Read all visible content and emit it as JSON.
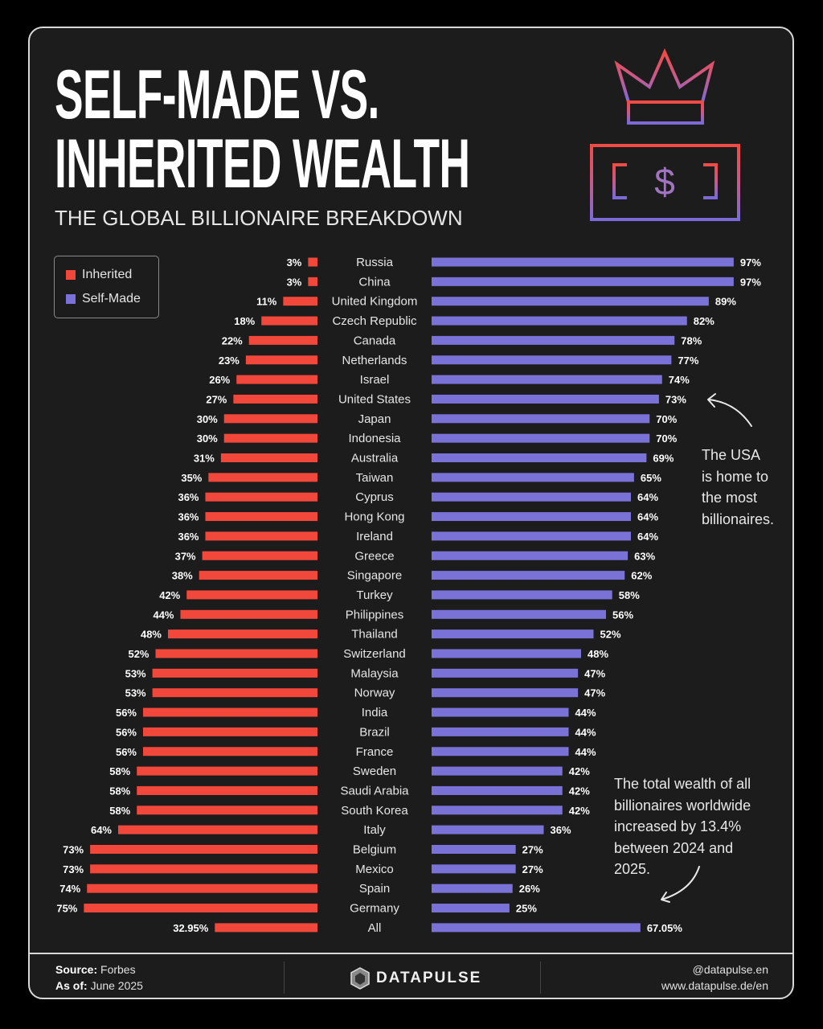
{
  "header": {
    "title_line1": "SELF-MADE VS.",
    "title_line2": "INHERITED WEALTH",
    "subtitle": "THE GLOBAL BILLIONAIRE BREAKDOWN",
    "icons": [
      "crown-icon",
      "dollar-bill-icon"
    ]
  },
  "colors": {
    "inherited": "#f2483c",
    "self_made": "#7a72d6",
    "background": "#1c1c1c"
  },
  "annotations": {
    "usa_note": [
      "The USA",
      "is home to",
      "the most",
      "billionaires."
    ],
    "wealth_note": [
      "The total wealth of all",
      "billionaires worldwide",
      "increased by 13.4%",
      "between 2024 and",
      "2025."
    ]
  },
  "footer": {
    "source_label": "Source:",
    "source_value": "Forbes",
    "asof_label": "As of:",
    "asof_value": "June 2025",
    "brand": "DATAPULSE",
    "handle": "@datapulse.en",
    "website": "www.datapulse.de/en"
  },
  "chart_data": {
    "type": "bar",
    "orientation": "horizontal-diverging",
    "legend": {
      "position": "top-left",
      "entries": [
        "Inherited",
        "Self-Made"
      ]
    },
    "grid": false,
    "xlim": [
      0,
      100
    ],
    "categories": [
      "Russia",
      "China",
      "United Kingdom",
      "Czech Republic",
      "Canada",
      "Netherlands",
      "Israel",
      "United States",
      "Japan",
      "Indonesia",
      "Australia",
      "Taiwan",
      "Cyprus",
      "Hong Kong",
      "Ireland",
      "Greece",
      "Singapore",
      "Turkey",
      "Philippines",
      "Thailand",
      "Switzerland",
      "Malaysia",
      "Norway",
      "India",
      "Brazil",
      "France",
      "Sweden",
      "Saudi Arabia",
      "South Korea",
      "Italy",
      "Belgium",
      "Mexico",
      "Spain",
      "Germany",
      "All"
    ],
    "series": [
      {
        "name": "Inherited",
        "values": [
          3,
          3,
          11,
          18,
          22,
          23,
          26,
          27,
          30,
          30,
          31,
          35,
          36,
          36,
          36,
          37,
          38,
          42,
          44,
          48,
          52,
          53,
          53,
          56,
          56,
          56,
          58,
          58,
          58,
          64,
          73,
          73,
          74,
          75,
          32.95
        ],
        "labels": [
          "3%",
          "3%",
          "11%",
          "18%",
          "22%",
          "23%",
          "26%",
          "27%",
          "30%",
          "30%",
          "31%",
          "35%",
          "36%",
          "36%",
          "36%",
          "37%",
          "38%",
          "42%",
          "44%",
          "48%",
          "52%",
          "53%",
          "53%",
          "56%",
          "56%",
          "56%",
          "58%",
          "58%",
          "58%",
          "64%",
          "73%",
          "73%",
          "74%",
          "75%",
          "32.95%"
        ]
      },
      {
        "name": "Self-Made",
        "values": [
          97,
          97,
          89,
          82,
          78,
          77,
          74,
          73,
          70,
          70,
          69,
          65,
          64,
          64,
          64,
          63,
          62,
          58,
          56,
          52,
          48,
          47,
          47,
          44,
          44,
          44,
          42,
          42,
          42,
          36,
          27,
          27,
          26,
          25,
          67.05
        ],
        "labels": [
          "97%",
          "97%",
          "89%",
          "82%",
          "78%",
          "77%",
          "74%",
          "73%",
          "70%",
          "70%",
          "69%",
          "65%",
          "64%",
          "64%",
          "64%",
          "63%",
          "62%",
          "58%",
          "56%",
          "52%",
          "48%",
          "47%",
          "47%",
          "44%",
          "44%",
          "44%",
          "42%",
          "42%",
          "42%",
          "36%",
          "27%",
          "27%",
          "26%",
          "25%",
          "67.05%"
        ]
      }
    ]
  }
}
